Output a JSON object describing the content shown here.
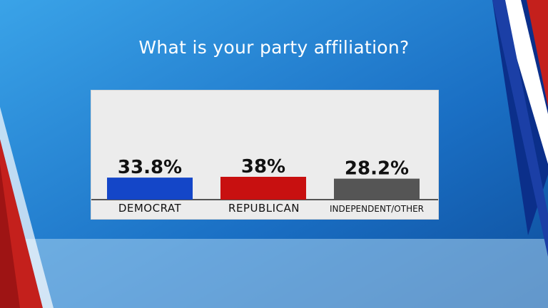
{
  "chart_data": {
    "type": "bar",
    "title": "What is your party affiliation?",
    "categories": [
      "DEMOCRAT",
      "REPUBLICAN",
      "INDEPENDENT/OTHER"
    ],
    "values": [
      33.8,
      38,
      28.2
    ],
    "data_labels": [
      "33.8%",
      "38%",
      "28.2%"
    ],
    "colors": [
      "#1446c8",
      "#c81010",
      "#555555"
    ],
    "xlabel": "",
    "ylabel": "",
    "grid": false,
    "legend": "none"
  }
}
